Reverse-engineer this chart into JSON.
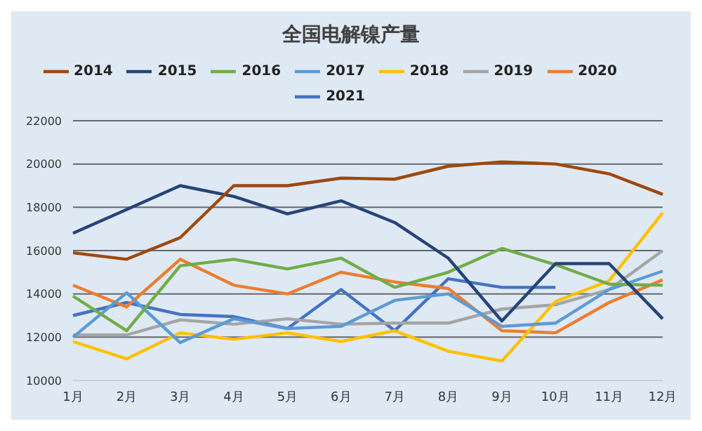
{
  "chart_data": {
    "type": "line",
    "title": "全国电解镍产量",
    "categories": [
      "1月",
      "2月",
      "3月",
      "4月",
      "5月",
      "6月",
      "7月",
      "8月",
      "9月",
      "10月",
      "11月",
      "12月"
    ],
    "series": [
      {
        "name": "2021",
        "color": "#4472c4",
        "values": [
          13000,
          13600,
          13050,
          12950,
          12400,
          14200,
          12300,
          14700,
          14300,
          14300,
          null,
          null
        ]
      },
      {
        "name": "2020",
        "color": "#ed7d31",
        "values": [
          14400,
          13400,
          15600,
          14400,
          14000,
          15000,
          14550,
          14250,
          12300,
          12200,
          13600,
          14650
        ]
      },
      {
        "name": "2019",
        "color": "#a5a5a5",
        "values": [
          12100,
          12100,
          12800,
          12600,
          12850,
          12600,
          12650,
          12650,
          13300,
          13500,
          14200,
          16000
        ]
      },
      {
        "name": "2018",
        "color": "#ffc000",
        "values": [
          11800,
          11000,
          12200,
          11900,
          12200,
          11800,
          12300,
          11350,
          10900,
          13650,
          14600,
          17750
        ]
      },
      {
        "name": "2017",
        "color": "#5b9bd5",
        "values": [
          12000,
          14050,
          11750,
          12850,
          12400,
          12500,
          13700,
          14000,
          12500,
          12650,
          14200,
          15050
        ]
      },
      {
        "name": "2016",
        "color": "#70ad47",
        "values": [
          13900,
          12300,
          15300,
          15600,
          15150,
          15650,
          14300,
          15000,
          16100,
          15350,
          14450,
          14400
        ]
      },
      {
        "name": "2015",
        "color": "#264478",
        "values": [
          16800,
          17900,
          19000,
          18500,
          17700,
          18300,
          17300,
          15650,
          12750,
          15400,
          15400,
          12850
        ]
      },
      {
        "name": "2014",
        "color": "#9e480e",
        "values": [
          15900,
          15600,
          16600,
          19000,
          19000,
          19350,
          19300,
          19900,
          20100,
          20000,
          19550,
          18600
        ]
      }
    ],
    "ylim": [
      10000,
      22000
    ],
    "yticks": [
      10000,
      12000,
      14000,
      16000,
      18000,
      20000,
      22000
    ],
    "grid": "y",
    "legend": "top",
    "marker": "none",
    "line_style": "solid"
  }
}
